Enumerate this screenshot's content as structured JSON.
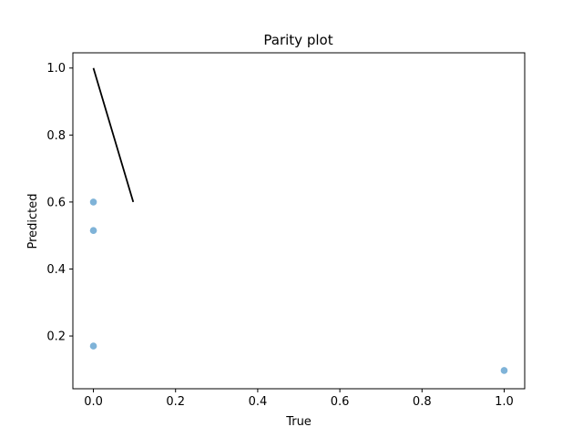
{
  "chart_data": {
    "type": "scatter",
    "title": "Parity plot",
    "xlabel": "True",
    "ylabel": "Predicted",
    "xlim": [
      -0.05,
      1.05
    ],
    "ylim": [
      0.0425,
      1.0455
    ],
    "xticks": [
      0.0,
      0.2,
      0.4,
      0.6,
      0.8,
      1.0
    ],
    "yticks": [
      0.2,
      0.4,
      0.6,
      0.8,
      1.0
    ],
    "xtick_labels": [
      "0.0",
      "0.2",
      "0.4",
      "0.6",
      "0.8",
      "1.0"
    ],
    "ytick_labels": [
      "0.2",
      "0.4",
      "0.6",
      "0.8",
      "1.0"
    ],
    "grid": false,
    "series": [
      {
        "kind": "scatter",
        "color": "#7fb3d8",
        "points": [
          {
            "x": 0.0,
            "y": 0.6
          },
          {
            "x": 0.0,
            "y": 0.515
          },
          {
            "x": 0.0,
            "y": 0.17
          },
          {
            "x": 1.0,
            "y": 0.097
          }
        ]
      },
      {
        "kind": "line",
        "color": "#000000",
        "points": [
          {
            "x": 0.0,
            "y": 1.0
          },
          {
            "x": 0.097,
            "y": 0.6
          }
        ]
      }
    ]
  }
}
